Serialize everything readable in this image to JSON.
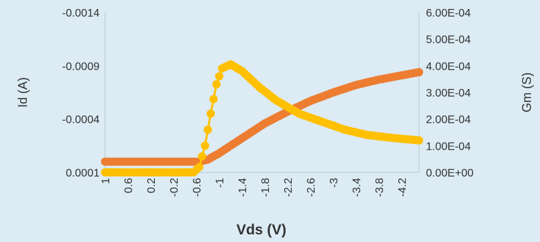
{
  "chart_data": {
    "type": "scatter",
    "xlabel": "Vds (V)",
    "ylabel_left": "Id (A)",
    "ylabel_right": "Gm (S)",
    "x_ticks": [
      "1",
      "0.6",
      "0.2",
      "-0.2",
      "-0.6",
      "-1",
      "-1.4",
      "-1.8",
      "-2.2",
      "-2.6",
      "-3",
      "-3.4",
      "-3.8",
      "-4.2"
    ],
    "y_left_ticks": [
      "-0.0014",
      "-0.0009",
      "-0.0004",
      "0.0001"
    ],
    "y_left_range": [
      0.0001,
      -0.0014
    ],
    "y_right_ticks": [
      "0.00E+00",
      "1.00E-04",
      "2.00E-04",
      "3.00E-04",
      "4.00E-04",
      "5.00E-04",
      "6.00E-04"
    ],
    "y_right_range": [
      0,
      0.0006
    ],
    "x_range": [
      1,
      -4.5
    ],
    "x_step": -0.05,
    "colors": {
      "id_series": "#ed7d31",
      "id_under": "#5b9bd5",
      "gm_series": "#ffc000",
      "axis": "#b8c4cc",
      "text": "#333333"
    },
    "series": [
      {
        "axis": "left",
        "color": "#ed7d31",
        "keypoints": [
          [
            1,
            0.0
          ],
          [
            -0.65,
            0.0
          ],
          [
            -0.8,
            -2e-05
          ],
          [
            -1.0,
            -8e-05
          ],
          [
            -1.4,
            -0.00022
          ],
          [
            -1.8,
            -0.00036
          ],
          [
            -2.2,
            -0.00047
          ],
          [
            -2.6,
            -0.00057
          ],
          [
            -3.0,
            -0.00065
          ],
          [
            -3.4,
            -0.00072
          ],
          [
            -3.8,
            -0.00077
          ],
          [
            -4.2,
            -0.00081
          ],
          [
            -4.5,
            -0.00084
          ]
        ]
      },
      {
        "axis": "right",
        "color": "#ffc000",
        "keypoints": [
          [
            1,
            0.0
          ],
          [
            -0.55,
            0.0
          ],
          [
            -0.65,
            2e-05
          ],
          [
            -0.75,
            0.0001
          ],
          [
            -0.85,
            0.00022
          ],
          [
            -0.95,
            0.00033
          ],
          [
            -1.05,
            0.00039
          ],
          [
            -1.2,
            0.000405
          ],
          [
            -1.4,
            0.00038
          ],
          [
            -1.7,
            0.00032
          ],
          [
            -2.0,
            0.00027
          ],
          [
            -2.4,
            0.00022
          ],
          [
            -2.8,
            0.00019
          ],
          [
            -3.2,
            0.00016
          ],
          [
            -3.6,
            0.00014
          ],
          [
            -4.0,
            0.00013
          ],
          [
            -4.5,
            0.00012
          ]
        ]
      }
    ]
  }
}
